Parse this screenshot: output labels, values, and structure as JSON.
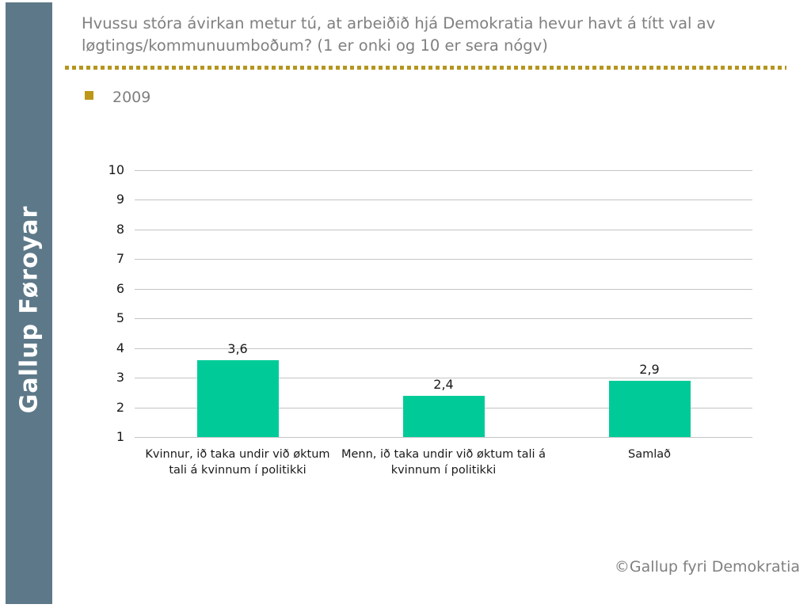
{
  "slide": {
    "title": "Hvussu stóra ávirkan metur tú, at arbeiðið hjá Demokratia hevur havt á títt val av løgtings/kommunuumboðum? (1 er onki og 10 er sera nógv)",
    "footer": "©Gallup fyri Demokratia"
  },
  "sidebar": {
    "brand": "Gallup Føroyar"
  },
  "legend": {
    "items": [
      {
        "label": "2009",
        "swatch_color": "#BC9718"
      }
    ]
  },
  "colors": {
    "sidebar_bg": "#5D7989",
    "accent_gold": "#B5951E",
    "bar": "#00CB98",
    "title_text": "#808080",
    "gridline": "#C4C4C4",
    "axis_text": "#1A1A1A"
  },
  "chart_data": {
    "type": "bar",
    "title": "",
    "xlabel": "",
    "ylabel": "",
    "categories": [
      "Kvinnur, ið taka undir við øktum tali á kvinnum í politikki",
      "Menn, ið taka undir við øktum tali á kvinnum í politikki",
      "Samlað"
    ],
    "series": [
      {
        "name": "2009",
        "values": [
          3.6,
          2.4,
          2.9
        ],
        "value_labels": [
          "3,6",
          "2,4",
          "2,9"
        ]
      }
    ],
    "ylim": [
      1,
      10
    ],
    "yticks": [
      1,
      2,
      3,
      4,
      5,
      6,
      7,
      8,
      9,
      10
    ],
    "grid": true,
    "legend_position": "top-left"
  }
}
